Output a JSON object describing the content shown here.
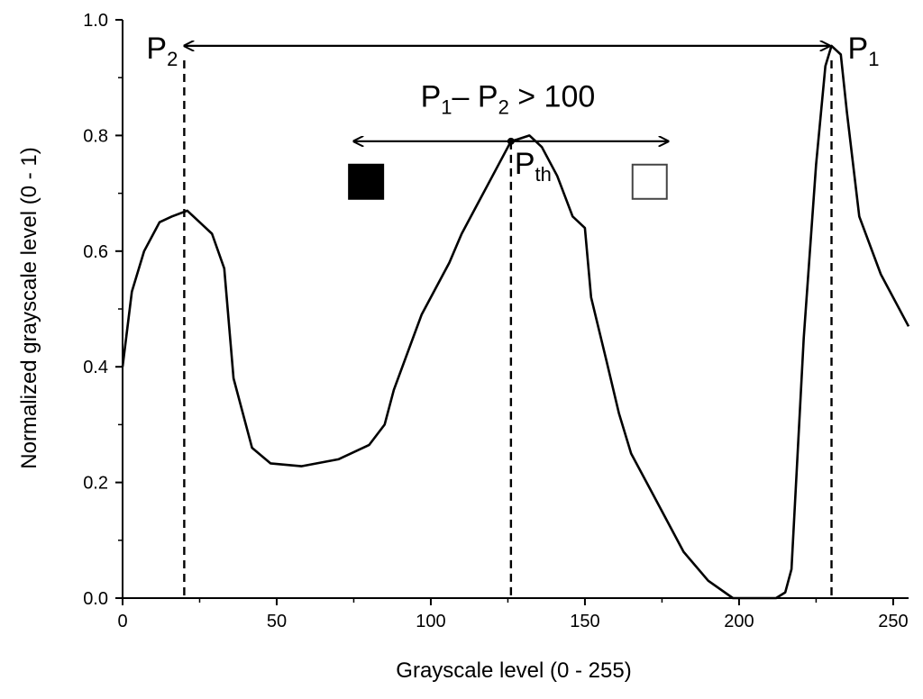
{
  "chart_data": {
    "type": "line",
    "xlabel": "Grayscale level (0 - 255)",
    "ylabel": "Normalized grayscale level (0 - 1)",
    "xlim": [
      0,
      255
    ],
    "ylim": [
      0,
      1
    ],
    "x_ticks": [
      "0",
      "50",
      "100",
      "150",
      "200",
      "250"
    ],
    "y_ticks": [
      "0.0",
      "0.2",
      "0.4",
      "0.6",
      "0.8",
      "1.0"
    ],
    "grid": false,
    "series": [
      {
        "points": [
          [
            0,
            0.4
          ],
          [
            3,
            0.53
          ],
          [
            7,
            0.6
          ],
          [
            12,
            0.65
          ],
          [
            16,
            0.66
          ],
          [
            21,
            0.67
          ],
          [
            25,
            0.65
          ],
          [
            29,
            0.63
          ],
          [
            33,
            0.57
          ],
          [
            36,
            0.38
          ],
          [
            42,
            0.26
          ],
          [
            48,
            0.233
          ],
          [
            58,
            0.228
          ],
          [
            70,
            0.24
          ],
          [
            80,
            0.265
          ],
          [
            85,
            0.3
          ],
          [
            88,
            0.36
          ],
          [
            97,
            0.49
          ],
          [
            106,
            0.58
          ],
          [
            110,
            0.63
          ],
          [
            115,
            0.68
          ],
          [
            120,
            0.73
          ],
          [
            126,
            0.79
          ],
          [
            128,
            0.793
          ],
          [
            132,
            0.8
          ],
          [
            136,
            0.78
          ],
          [
            141,
            0.73
          ],
          [
            146,
            0.66
          ],
          [
            150,
            0.64
          ],
          [
            152,
            0.52
          ],
          [
            157,
            0.41
          ],
          [
            161,
            0.32
          ],
          [
            165,
            0.25
          ],
          [
            172,
            0.18
          ],
          [
            182,
            0.08
          ],
          [
            190,
            0.03
          ],
          [
            198,
            0.0
          ],
          [
            212,
            0.0
          ],
          [
            215,
            0.01
          ],
          [
            217,
            0.05
          ],
          [
            219,
            0.25
          ],
          [
            221,
            0.45
          ],
          [
            225,
            0.75
          ],
          [
            228,
            0.92
          ],
          [
            230,
            0.955
          ],
          [
            233,
            0.94
          ],
          [
            235,
            0.84
          ],
          [
            239,
            0.66
          ],
          [
            246,
            0.56
          ],
          [
            255,
            0.47
          ]
        ]
      }
    ],
    "annotations": {
      "p1": {
        "label": "P",
        "sub": "1",
        "x": 230
      },
      "p2": {
        "label": "P",
        "sub": "2",
        "x": 20
      },
      "pth": {
        "label": "P",
        "sub": "th",
        "x": 126,
        "y": 0.79
      },
      "difference": {
        "parts": [
          {
            "t": "P",
            "sub": false
          },
          {
            "t": "1",
            "sub": true
          },
          {
            "t": "– P",
            "sub": false
          },
          {
            "t": "2",
            "sub": true
          },
          {
            "t": " > 100",
            "sub": false
          }
        ],
        "arrow_from_x": 20,
        "arrow_to_x": 230,
        "arrow_y": 0.955
      },
      "threshold_arrow": {
        "from_x": 75,
        "to_x": 177,
        "y": 0.79
      },
      "black_square": {
        "x": 79,
        "y": 0.72,
        "color": "#000000"
      },
      "white_square": {
        "x": 171,
        "y": 0.72,
        "color": "#ffffff"
      }
    }
  }
}
